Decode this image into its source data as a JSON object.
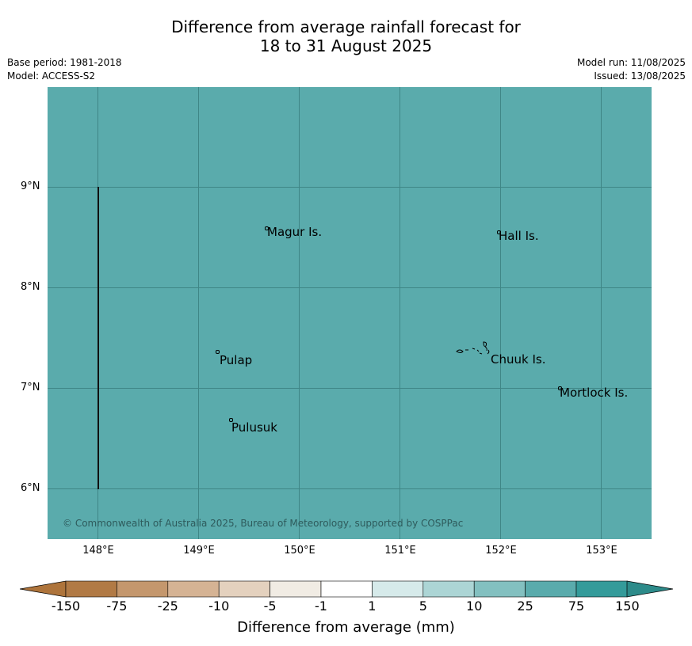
{
  "title_line1": "Difference from average rainfall forecast for",
  "title_line2": "18 to 31 August 2025",
  "base_period": "Base period: 1981-2018",
  "model": "Model: ACCESS-S2",
  "model_run": "Model run: 11/08/2025",
  "issued": "Issued: 13/08/2025",
  "map": {
    "fill_color": "#5aabac",
    "places": [
      "Magur Is.",
      "Hall Is.",
      "Pulap",
      "Chuuk Is.",
      "Mortlock Is.",
      "Pulusuk"
    ],
    "copyright": "© Commonwealth of Australia 2025, Bureau of Meteorology, supported by COSPPac",
    "lat_labels": [
      "9°N",
      "8°N",
      "7°N",
      "6°N"
    ],
    "lon_labels": [
      "148°E",
      "149°E",
      "150°E",
      "151°E",
      "152°E",
      "153°E"
    ]
  },
  "colorbar": {
    "label": "Difference from average (mm)",
    "ticks": [
      "-150",
      "-75",
      "-25",
      "-10",
      "-5",
      "-1",
      "1",
      "5",
      "10",
      "25",
      "75",
      "150"
    ],
    "colors": [
      "#ae743b",
      "#b17a45",
      "#c4976d",
      "#d5b394",
      "#e4d1be",
      "#f1ece4",
      "#ffffff",
      "#d6eaea",
      "#acd5d5",
      "#83c0c0",
      "#5aabac",
      "#349b9a",
      "#2d8b8a"
    ]
  }
}
